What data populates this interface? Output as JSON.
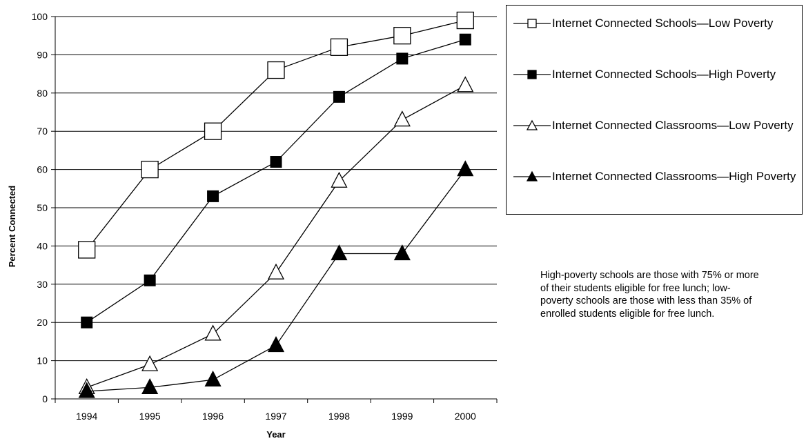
{
  "chart_data": {
    "type": "line",
    "title": "",
    "xlabel": "Year",
    "ylabel": "Percent Connected",
    "categories": [
      "1994",
      "1995",
      "1996",
      "1997",
      "1998",
      "1999",
      "2000"
    ],
    "ylim": [
      0,
      100
    ],
    "yticks": [
      0,
      10,
      20,
      30,
      40,
      50,
      60,
      70,
      80,
      90,
      100
    ],
    "grid": "horizontal",
    "legend_position": "right",
    "series": [
      {
        "name": "Internet Connected Schools—Low Poverty",
        "marker": "square-open",
        "values": [
          39,
          60,
          70,
          86,
          92,
          95,
          99
        ]
      },
      {
        "name": "Internet Connected Schools—High Poverty",
        "marker": "square-filled",
        "values": [
          20,
          31,
          53,
          62,
          79,
          89,
          94
        ]
      },
      {
        "name": "Internet Connected Classrooms—Low Poverty",
        "marker": "triangle-open",
        "values": [
          3,
          9,
          17,
          33,
          57,
          73,
          82
        ]
      },
      {
        "name": "Internet Connected Classrooms—High Poverty",
        "marker": "triangle-filled",
        "values": [
          2,
          3,
          5,
          14,
          38,
          38,
          60
        ]
      }
    ]
  },
  "note": "High-poverty schools are those with 75% or more of their students eligible for free lunch; low-poverty schools are those with less than 35% of enrolled students eligible for free lunch."
}
